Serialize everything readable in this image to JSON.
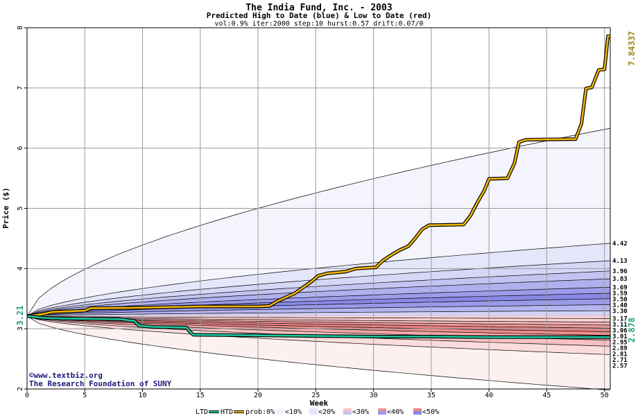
{
  "chart_data": {
    "type": "area",
    "title": "The India Fund, Inc. - 2003",
    "subtitle": "Predicted High to Date (blue) &  Low to Date (red)",
    "params": "vol:0.9% iter:2000 step:10 hurst:0.57 drift:0.07/0",
    "xlabel": "Week",
    "ylabel": "Price ($)",
    "xlim": [
      0,
      50.5
    ],
    "ylim": [
      2,
      8
    ],
    "x_ticks": [
      0,
      5,
      10,
      15,
      20,
      25,
      30,
      35,
      40,
      45,
      50
    ],
    "y_ticks": [
      2,
      3,
      4,
      5,
      6,
      7,
      8
    ],
    "grid": true,
    "start_value": "3.21",
    "high_end_label": "7.84337",
    "low_end_label": "2.878",
    "colors": {
      "htd": "#f2b705",
      "ltd": "#1fc9a0",
      "high_label": "#a08a18",
      "low_label": "#1a9f80",
      "grid": "#999999",
      "credit": "#1a1a7a"
    },
    "credits": [
      "©www.textbiz.org",
      "The Research Foundation of SUNY"
    ],
    "legend": {
      "ltd": "LTD",
      "htd": "HTD",
      "prob": "prob:0%",
      "bins": [
        "<10%",
        "<20%",
        "<30%",
        "<40%",
        "<50%"
      ],
      "placement": "bottom"
    },
    "x": [
      0,
      1,
      2,
      3,
      4,
      5,
      6,
      7,
      8,
      9,
      10,
      11,
      12,
      13,
      14,
      15,
      16,
      17,
      18,
      19,
      20,
      21,
      22,
      23,
      24,
      25,
      26,
      27,
      28,
      29,
      30,
      31,
      32,
      33,
      34,
      35,
      36,
      37,
      38,
      39,
      40,
      41,
      42,
      43,
      44,
      45,
      46,
      47,
      48,
      49,
      50,
      50.5
    ],
    "upper_bands": [
      {
        "end": 6.33,
        "power": 0.6,
        "fill": "#f4f4fd"
      },
      {
        "end": 4.42,
        "power": 0.6,
        "fill": "#e6e6fa"
      },
      {
        "end": 4.13,
        "power": 0.6,
        "fill": "#d6d6f6"
      },
      {
        "end": 3.96,
        "power": 0.6,
        "fill": "#c4c4f2"
      },
      {
        "end": 3.83,
        "power": 0.6,
        "fill": "#b0b0ee"
      },
      {
        "end": 3.69,
        "power": 0.6,
        "fill": "#9c9cea"
      },
      {
        "end": 3.59,
        "power": 0.6,
        "fill": "#8888e6"
      },
      {
        "end": 3.5,
        "power": 0.6,
        "fill": "#9a9ae9"
      },
      {
        "end": 3.4,
        "power": 0.6,
        "fill": "#b4b4ef"
      },
      {
        "end": 3.3,
        "power": 0.6,
        "fill": "#d2d2f6"
      },
      {
        "end": 3.17,
        "power": 0.6,
        "fill": "#ececfb"
      }
    ],
    "lower_bands": [
      {
        "end": 1.98,
        "power": 0.6,
        "fill": "#fdf0f0"
      },
      {
        "end": 2.57,
        "power": 0.6,
        "fill": "#fbdcdc"
      },
      {
        "end": 2.71,
        "power": 0.6,
        "fill": "#f8c2c2"
      },
      {
        "end": 2.81,
        "power": 0.6,
        "fill": "#f4a8a8"
      },
      {
        "end": 2.89,
        "power": 0.6,
        "fill": "#ef8e8e"
      },
      {
        "end": 2.95,
        "power": 0.6,
        "fill": "#ec8080"
      },
      {
        "end": 3.01,
        "power": 0.6,
        "fill": "#f09a9a"
      },
      {
        "end": 3.06,
        "power": 0.6,
        "fill": "#f4b4b4"
      },
      {
        "end": 3.11,
        "power": 0.6,
        "fill": "#f8d2d2"
      }
    ],
    "right_labels": [
      "4.42",
      "4.13",
      "3.96",
      "3.83",
      "3.69",
      "3.59",
      "3.50",
      "3.40",
      "3.30",
      "3.17",
      "3.11",
      "3.06",
      "3.01",
      "2.95",
      "2.89",
      "2.81",
      "2.71",
      "2.57"
    ],
    "htd_series": {
      "name": "HTD",
      "points": [
        [
          0,
          3.21
        ],
        [
          1.3,
          3.24
        ],
        [
          2.2,
          3.28
        ],
        [
          5,
          3.3
        ],
        [
          5.5,
          3.34
        ],
        [
          10,
          3.35
        ],
        [
          15,
          3.37
        ],
        [
          20,
          3.37
        ],
        [
          21,
          3.38
        ],
        [
          21.6,
          3.45
        ],
        [
          22.5,
          3.53
        ],
        [
          23.2,
          3.59
        ],
        [
          24,
          3.7
        ],
        [
          24.6,
          3.78
        ],
        [
          25.2,
          3.88
        ],
        [
          26,
          3.92
        ],
        [
          27.6,
          3.95
        ],
        [
          28.5,
          4.0
        ],
        [
          30.2,
          4.02
        ],
        [
          30.8,
          4.13
        ],
        [
          31.5,
          4.22
        ],
        [
          32.2,
          4.3
        ],
        [
          33,
          4.37
        ],
        [
          33.6,
          4.5
        ],
        [
          34.2,
          4.65
        ],
        [
          34.8,
          4.72
        ],
        [
          37.8,
          4.73
        ],
        [
          38.4,
          4.88
        ],
        [
          39.0,
          5.1
        ],
        [
          39.6,
          5.3
        ],
        [
          40.0,
          5.49
        ],
        [
          41.6,
          5.5
        ],
        [
          42.2,
          5.75
        ],
        [
          42.6,
          6.1
        ],
        [
          43.2,
          6.14
        ],
        [
          47.5,
          6.15
        ],
        [
          48.0,
          6.4
        ],
        [
          48.4,
          6.99
        ],
        [
          48.9,
          7.01
        ],
        [
          49.5,
          7.3
        ],
        [
          50.0,
          7.31
        ],
        [
          50.3,
          7.86
        ],
        [
          50.5,
          7.86
        ]
      ]
    },
    "ltd_series": {
      "name": "LTD",
      "points": [
        [
          0,
          3.21
        ],
        [
          1.5,
          3.18
        ],
        [
          3,
          3.17
        ],
        [
          8,
          3.16
        ],
        [
          9.3,
          3.13
        ],
        [
          9.7,
          3.05
        ],
        [
          11,
          3.03
        ],
        [
          13.8,
          3.02
        ],
        [
          14.1,
          2.95
        ],
        [
          14.4,
          2.9
        ],
        [
          20,
          2.89
        ],
        [
          25,
          2.88
        ],
        [
          30,
          2.87
        ],
        [
          35,
          2.87
        ],
        [
          40,
          2.86
        ],
        [
          45,
          2.86
        ],
        [
          50.5,
          2.86
        ]
      ]
    }
  }
}
